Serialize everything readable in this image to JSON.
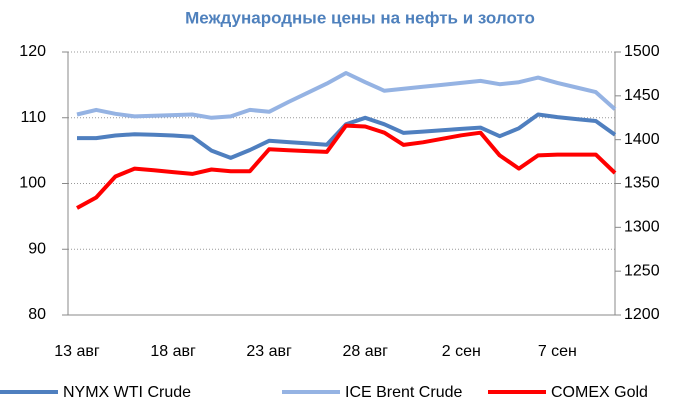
{
  "chart_data": {
    "type": "line",
    "title": "Международные цены на нефть и золото",
    "categories": [
      "13 авг",
      null,
      null,
      null,
      null,
      "18 авг",
      null,
      null,
      null,
      null,
      "23 авг",
      null,
      null,
      null,
      null,
      "28 авг",
      null,
      null,
      null,
      null,
      "2 сен",
      null,
      null,
      null,
      null,
      "7 сен",
      null,
      null,
      null
    ],
    "series": [
      {
        "name": "NYMX WTI Crude",
        "color": "#4f7fbf",
        "values": [
          106.9,
          106.9,
          107.3,
          107.5,
          107.4,
          107.3,
          107.1,
          105,
          103.9,
          105.1,
          106.5,
          106.3,
          106.1,
          105.9,
          109,
          110,
          109,
          107.7,
          107.9,
          108.1,
          108.3,
          108.5,
          107.2,
          108.4,
          110.5,
          110.1,
          109.8,
          109.5,
          107.4
        ]
      },
      {
        "name": "ICE Brent Crude",
        "color": "#95b3e3",
        "values": [
          110.5,
          111.2,
          110.6,
          110.2,
          110.3,
          110.4,
          110.5,
          110,
          110.2,
          111.2,
          110.9,
          112.4,
          113.8,
          115.2,
          116.8,
          115.4,
          114.1,
          114.4,
          114.7,
          115,
          115.3,
          115.6,
          115.1,
          115.4,
          116.1,
          115.3,
          114.6,
          113.9,
          111.3
        ]
      },
      {
        "name": "COMEX Gold",
        "color": "#ff0000",
        "axis": "y2",
        "values": [
          1322,
          1334,
          1358,
          1367,
          1365,
          1363,
          1361,
          1366,
          1364,
          1364,
          1389,
          1388,
          1387,
          1386,
          1416,
          1415,
          1408,
          1394,
          1397,
          1401,
          1405,
          1408,
          1382,
          1367,
          1382,
          1383,
          1383,
          1383,
          1362
        ]
      }
    ],
    "ylim": [
      80,
      120
    ],
    "yticks": [
      80,
      90,
      100,
      110,
      120
    ],
    "y2lim": [
      1200,
      1500
    ],
    "y2ticks": [
      1200,
      1250,
      1300,
      1350,
      1400,
      1450,
      1500
    ],
    "grid": true,
    "legend": "bottom"
  }
}
